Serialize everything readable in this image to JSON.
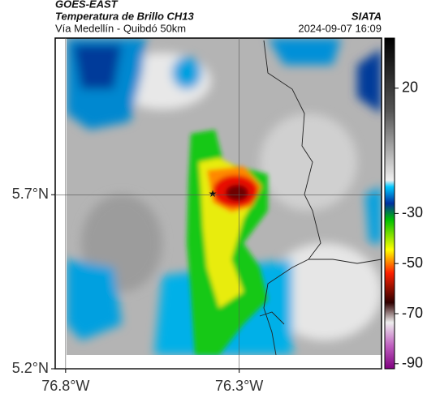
{
  "header": {
    "title": "GOES-EAST",
    "subtitle": "Temperatura de Brillo CH13",
    "route": "Vía Medellín - Quibdó 50km",
    "source": "SIATA",
    "timestamp": "2024-09-07 16:09"
  },
  "map": {
    "lon_lim": [
      -76.83,
      -75.89
    ],
    "lat_lim": [
      5.2,
      6.15
    ],
    "lat_ticks": [
      {
        "value": 5.7,
        "label": "5.7°N"
      },
      {
        "value": 5.2,
        "label": "5.2°N"
      }
    ],
    "lon_ticks": [
      {
        "value": -76.8,
        "label": "76.8°W"
      },
      {
        "value": -76.3,
        "label": "76.3°W"
      }
    ]
  },
  "colorbar": {
    "lim": [
      -92,
      40
    ],
    "ticks": [
      20,
      -30,
      -50,
      -70,
      -90
    ]
  }
}
